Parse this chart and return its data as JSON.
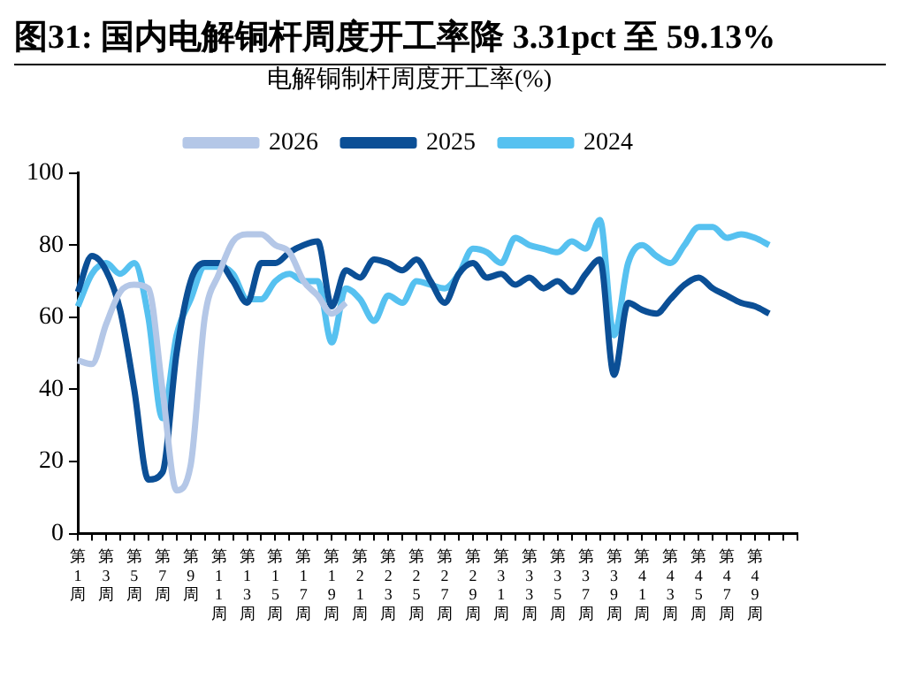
{
  "chart_data": {
    "type": "line",
    "title": "图31:  国内电解铜杆周度开工率降 3.31pct 至 59.13%",
    "subtitle": "电解铜制杆周度开工率(%)",
    "categories": [
      "第1周",
      null,
      "第3周",
      null,
      "第5周",
      null,
      "第7周",
      null,
      "第9周",
      null,
      "第11周",
      null,
      "第13周",
      null,
      "第15周",
      null,
      "第17周",
      null,
      "第19周",
      null,
      "第21周",
      null,
      "第23周",
      null,
      "第25周",
      null,
      "第27周",
      null,
      "第29周",
      null,
      "第31周",
      null,
      "第33周",
      null,
      "第35周",
      null,
      "第37周",
      null,
      "第39周",
      null,
      "第41周",
      null,
      "第43周",
      null,
      "第45周",
      null,
      "第47周",
      null,
      "第49周",
      null,
      null,
      null
    ],
    "series": [
      {
        "name": "2026",
        "color": "#b4c7e7",
        "values": [
          48,
          47,
          58,
          67,
          69,
          68,
          40,
          12,
          19,
          60,
          72,
          81,
          83,
          83,
          80,
          78,
          70,
          66,
          61,
          64,
          null,
          null,
          null,
          null,
          null,
          null,
          null,
          null,
          null,
          null,
          null,
          null,
          null,
          null,
          null,
          null,
          null,
          null,
          null,
          null,
          null,
          null,
          null,
          null,
          null,
          null,
          null,
          null,
          null,
          null,
          null,
          null
        ]
      },
      {
        "name": "2025",
        "color": "#0b4f96",
        "values": [
          67,
          77,
          73,
          62,
          40,
          15,
          17,
          50,
          70,
          75,
          75,
          70,
          64,
          75,
          75,
          78,
          80,
          81,
          63,
          73,
          71,
          76,
          75,
          73,
          76,
          70,
          64,
          72,
          75,
          71,
          72,
          69,
          71,
          68,
          70,
          67,
          72,
          76,
          44,
          64,
          62,
          61,
          65,
          69,
          71,
          68,
          66,
          64,
          63,
          61,
          null,
          null
        ]
      },
      {
        "name": "2024",
        "color": "#56c1f0",
        "values": [
          63,
          72,
          75,
          72,
          75,
          60,
          32,
          55,
          65,
          74,
          74,
          72,
          65,
          65,
          70,
          72,
          70,
          70,
          53,
          68,
          65,
          59,
          66,
          64,
          70,
          69,
          68,
          72,
          79,
          78,
          75,
          82,
          80,
          79,
          78,
          81,
          79,
          87,
          55,
          75,
          80,
          77,
          75,
          80,
          85,
          85,
          82,
          83,
          82,
          80,
          null,
          null
        ]
      }
    ],
    "ylim": [
      0,
      100
    ],
    "yticks": [
      0,
      20,
      40,
      60,
      80,
      100
    ],
    "grid": false,
    "legend": "top",
    "line_style": "solid",
    "marker": "none"
  }
}
